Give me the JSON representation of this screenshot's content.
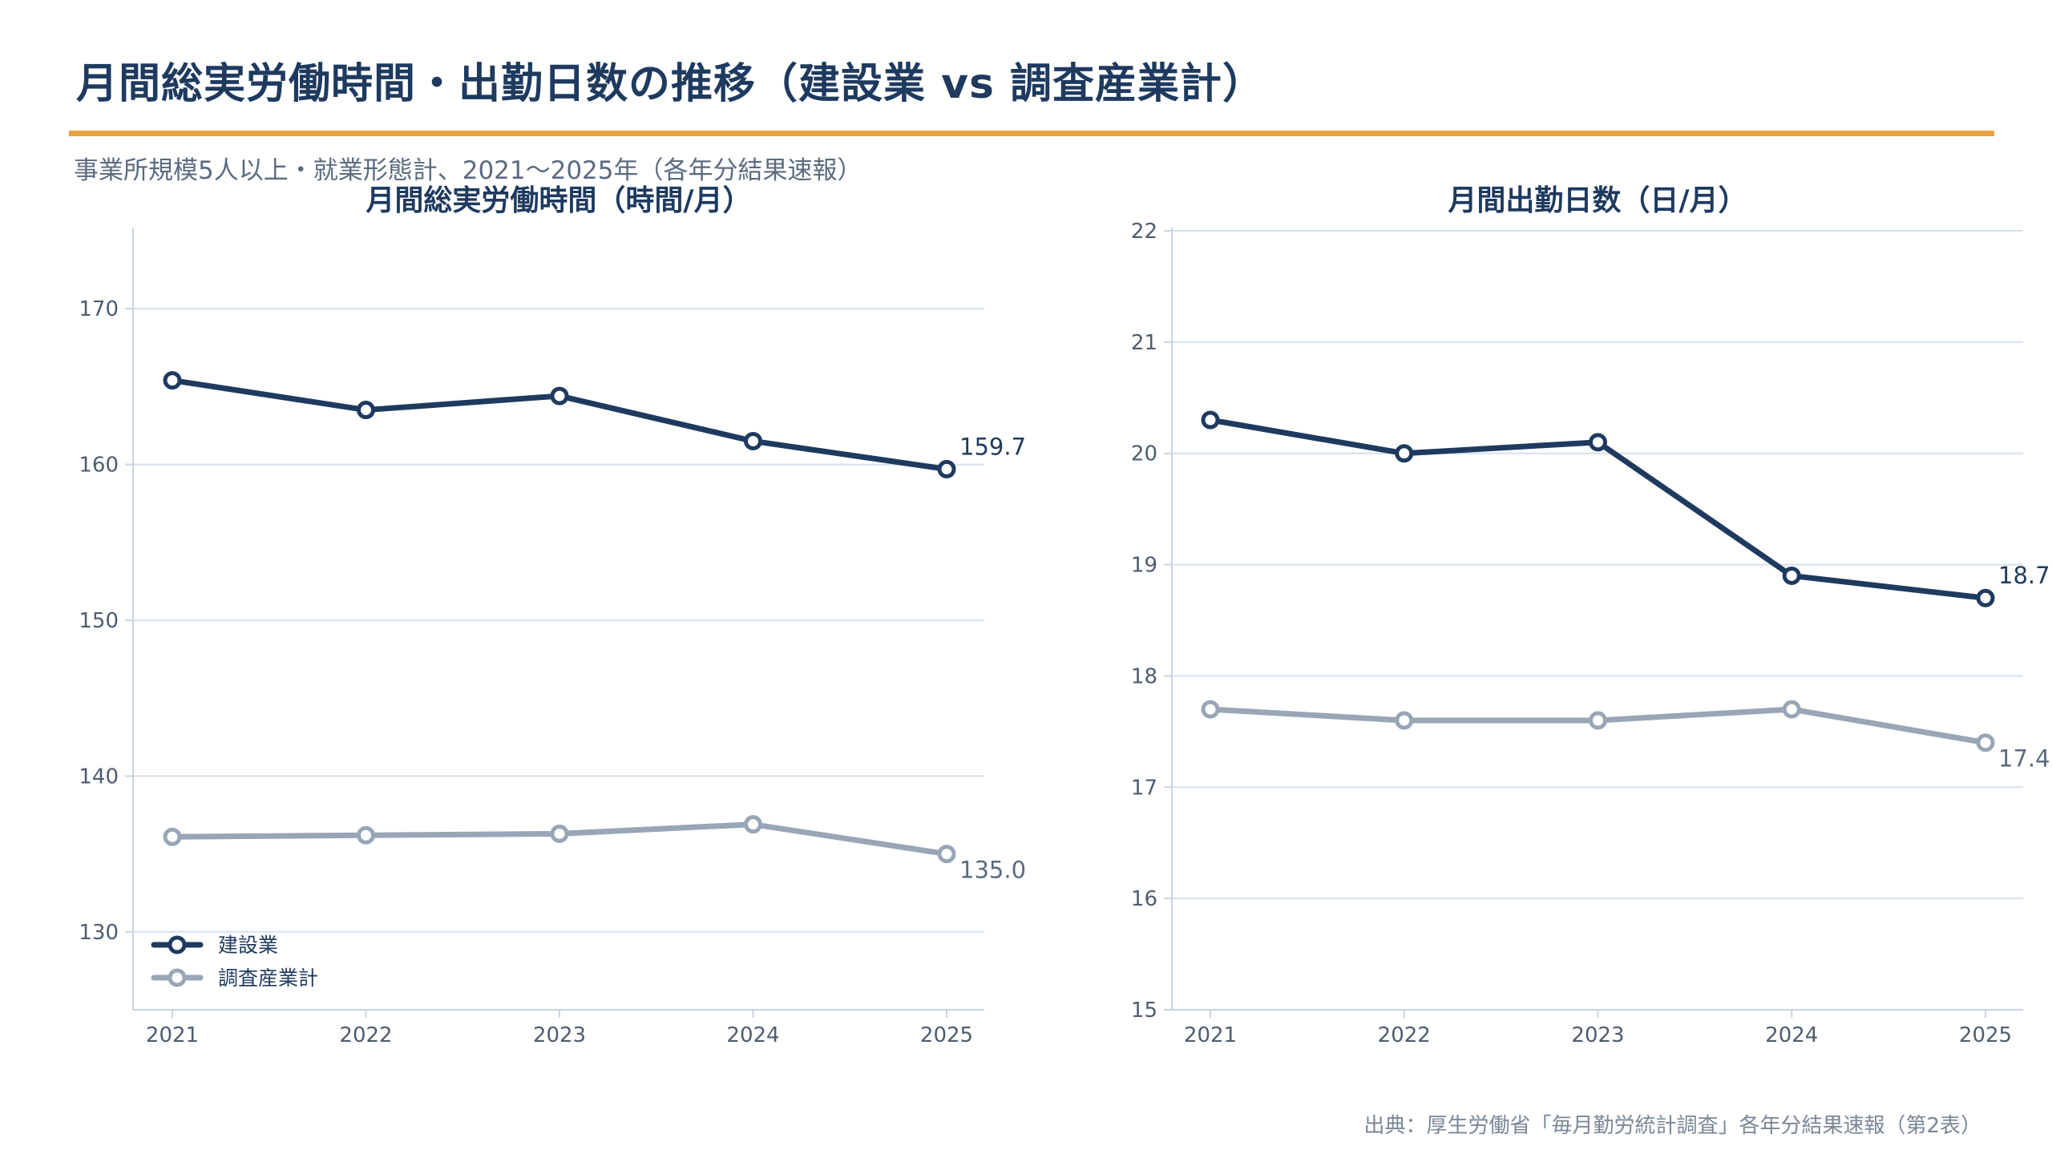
{
  "page": {
    "title": "月間総実労働時間・出勤日数の推移（建設業 vs 調査産業計）",
    "subtitle": "事業所規模5人以上・就業形態計、2021～2025年（各年分結果速報）",
    "source": "出典：厚生労働省「毎月勤労統計調査」各年分結果速報（第2表）"
  },
  "colors": {
    "accent": "#e8a33d",
    "construction": "#1f3a5f",
    "all_industries": "#98a6b6",
    "grid": "#d5e0ec"
  },
  "chart_data": [
    {
      "type": "line",
      "title": "月間総実労働時間（時間/月）",
      "x": [
        "2021",
        "2022",
        "2023",
        "2024",
        "2025"
      ],
      "ylim": [
        125,
        175
      ],
      "yticks": [
        130,
        140,
        150,
        160,
        170
      ],
      "grid": true,
      "legend": "bottom-left",
      "series": [
        {
          "name": "建設業",
          "values": [
            165.4,
            163.5,
            164.4,
            161.5,
            159.7
          ],
          "end_label": "159.7"
        },
        {
          "name": "調査産業計",
          "values": [
            136.1,
            136.2,
            136.3,
            136.9,
            135.0
          ],
          "end_label": "135.0"
        }
      ]
    },
    {
      "type": "line",
      "title": "月間出勤日数（日/月）",
      "x": [
        "2021",
        "2022",
        "2023",
        "2024",
        "2025"
      ],
      "ylim": [
        15,
        22
      ],
      "yticks": [
        15,
        16,
        17,
        18,
        19,
        20,
        21,
        22
      ],
      "grid": true,
      "series": [
        {
          "name": "建設業",
          "values": [
            20.3,
            20.0,
            20.1,
            18.9,
            18.7
          ],
          "end_label": "18.7"
        },
        {
          "name": "調査産業計",
          "values": [
            17.7,
            17.6,
            17.6,
            17.7,
            17.4
          ],
          "end_label": "17.4"
        }
      ]
    }
  ]
}
